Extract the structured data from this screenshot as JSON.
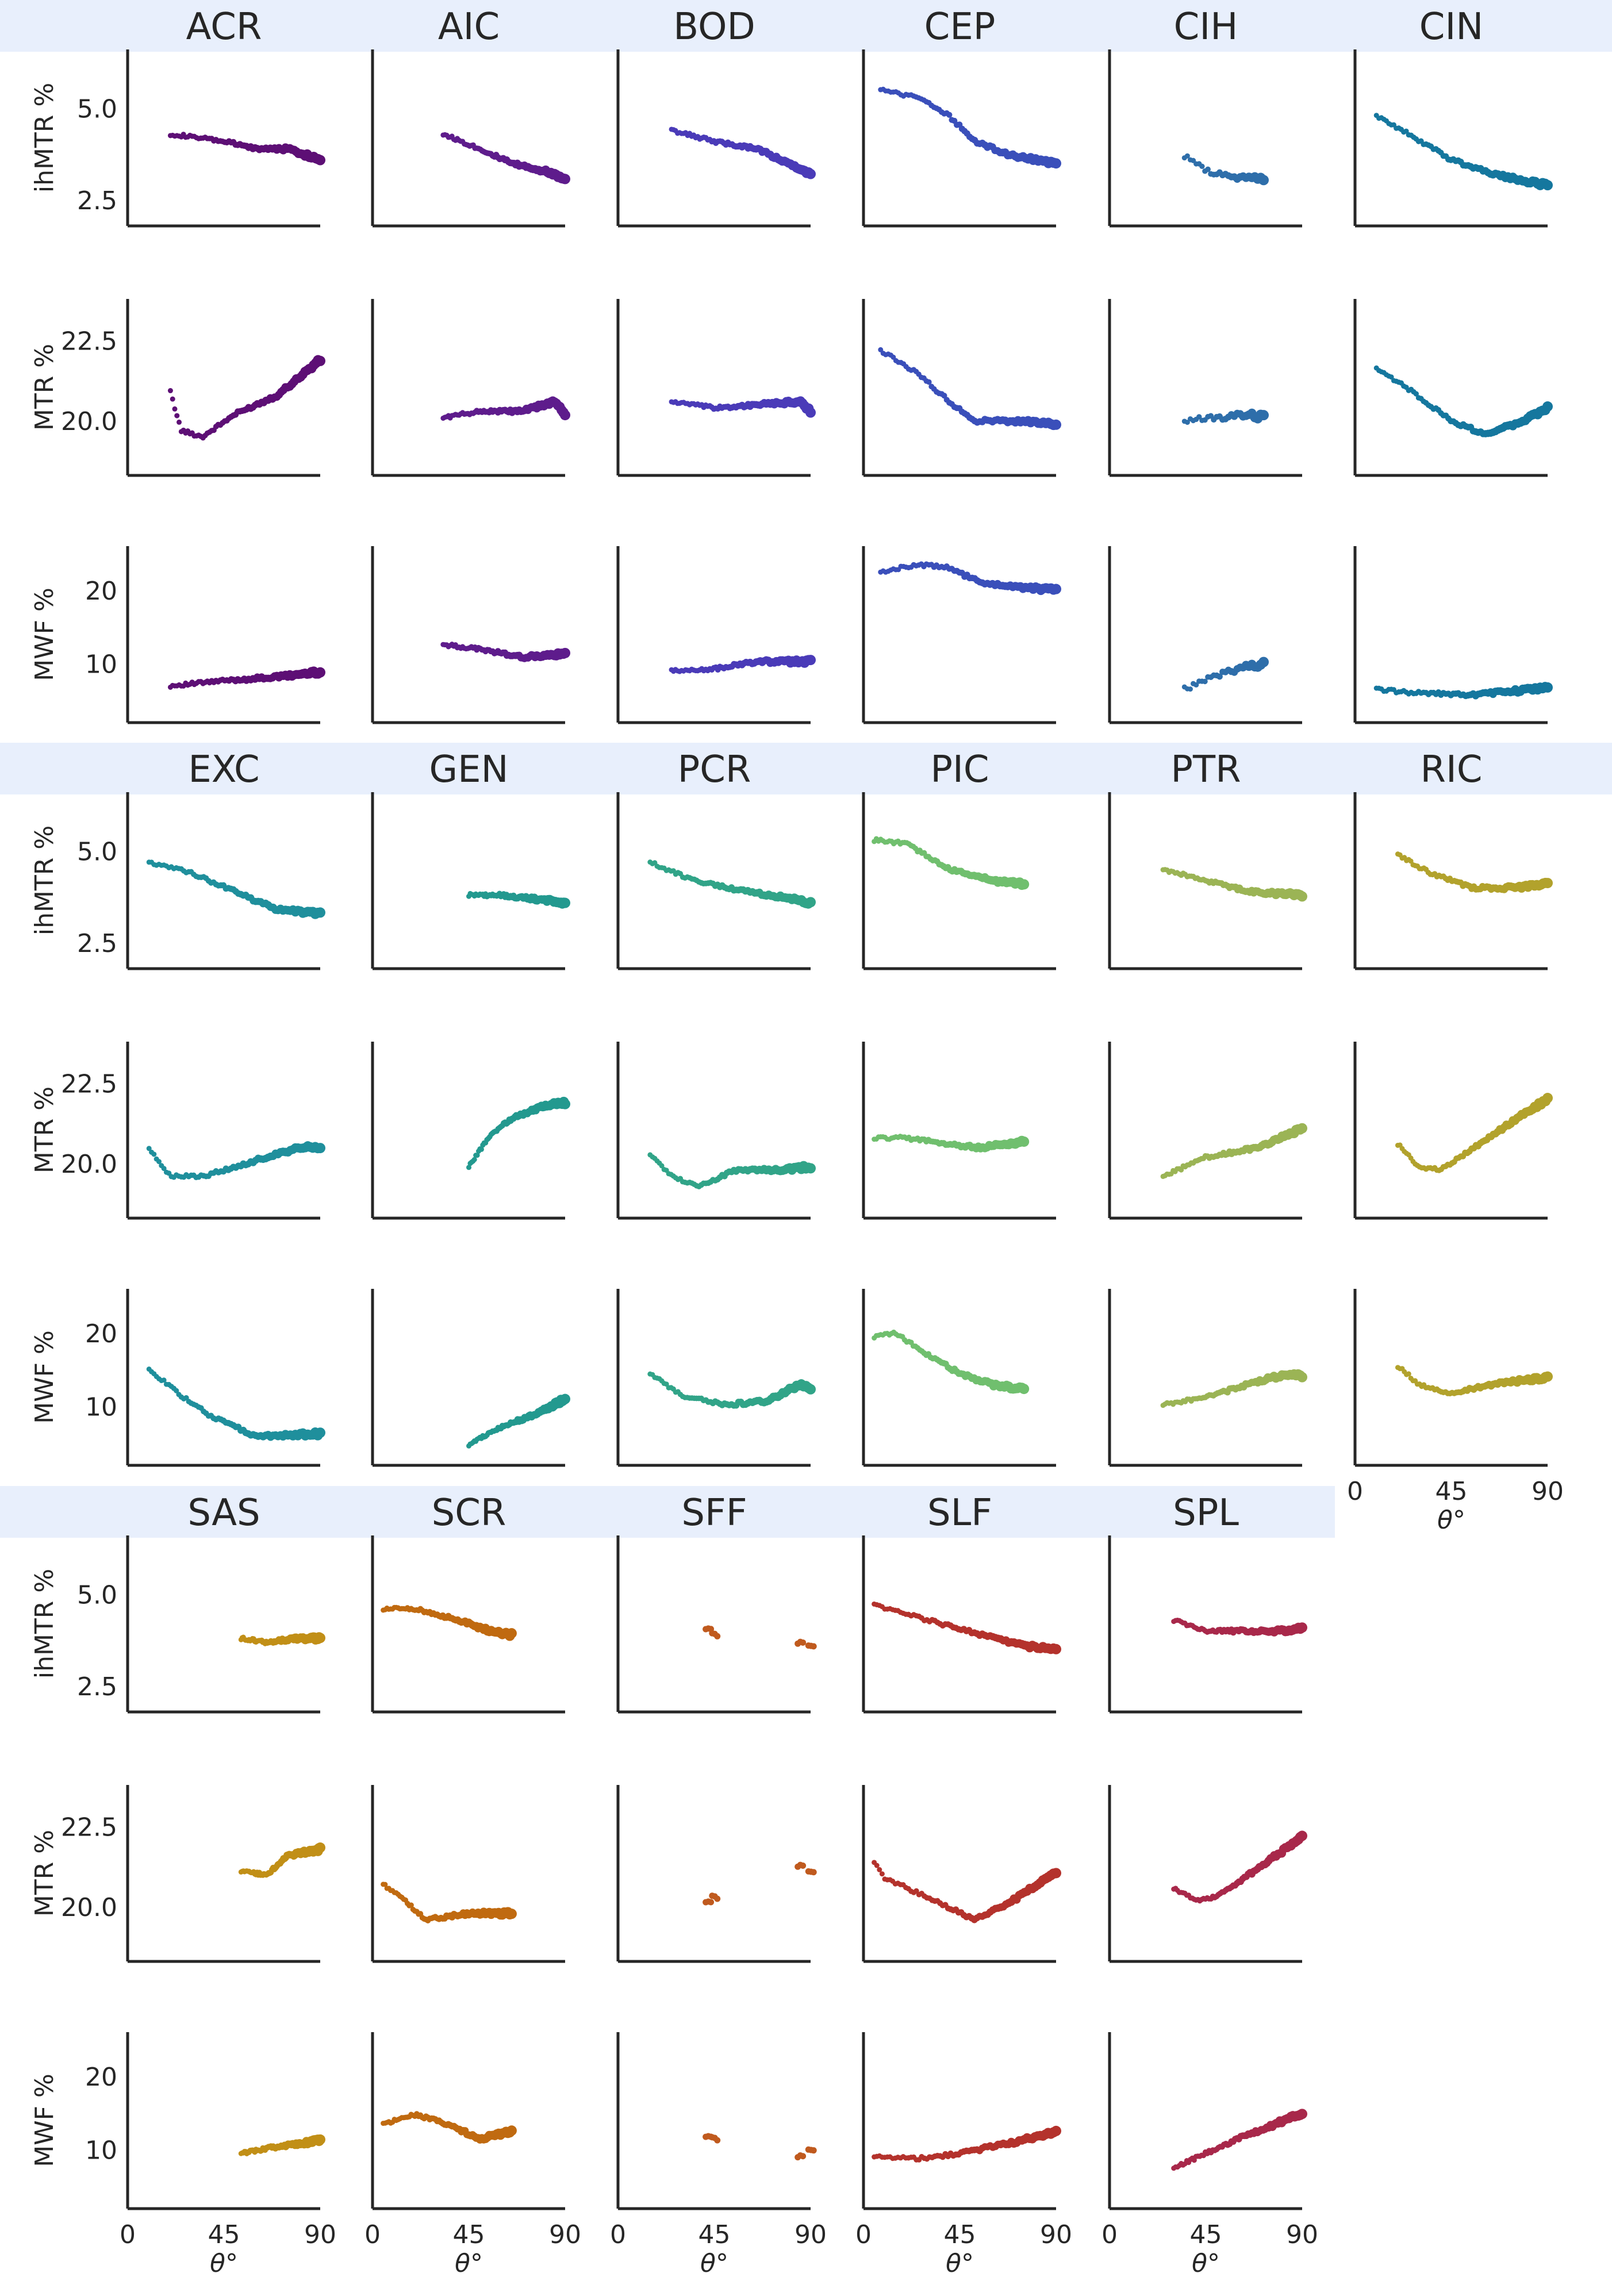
{
  "figure": {
    "band_color": "#e8effc",
    "y_axis_labels": {
      "ihMTR": "ihMTR %",
      "MTR": "MTR %",
      "MWF": "MWF %"
    },
    "x_axis_label": "θ°",
    "x_tick_labels": [
      "0",
      "45",
      "90"
    ],
    "y_tick_labels": {
      "ihMTR": [
        "2.5",
        "5.0"
      ],
      "MTR": [
        "20.0",
        "22.5"
      ],
      "MWF": [
        "10",
        "20"
      ]
    }
  },
  "chart_data": {
    "type": "scatter",
    "title": "",
    "xlabel": "θ°",
    "xlim": [
      0,
      90
    ],
    "xticks": [
      0,
      45,
      90
    ],
    "metrics": [
      {
        "key": "ihMTR",
        "ylabel": "ihMTR %",
        "ylim": [
          1.8,
          6.6
        ],
        "yticks": [
          2.5,
          5.0
        ]
      },
      {
        "key": "MTR",
        "ylabel": "MTR %",
        "ylim": [
          18.3,
          23.8
        ],
        "yticks": [
          20.0,
          22.5
        ]
      },
      {
        "key": "MWF",
        "ylabel": "MWF %",
        "ylim": [
          2,
          26
        ],
        "yticks": [
          10,
          20
        ]
      }
    ],
    "bundles": [
      {
        "name": "ACR",
        "color": "#5d0f75",
        "ihMTR": [
          [
            20,
            4.3
          ],
          [
            45,
            4.1
          ],
          [
            60,
            3.9
          ],
          [
            75,
            3.9
          ],
          [
            90,
            3.6
          ]
        ],
        "MTR": [
          [
            20,
            20.9
          ],
          [
            25,
            19.7
          ],
          [
            35,
            19.5
          ],
          [
            50,
            20.2
          ],
          [
            70,
            20.8
          ],
          [
            90,
            21.9
          ]
        ],
        "MWF": [
          [
            20,
            7.0
          ],
          [
            45,
            7.7
          ],
          [
            70,
            8.2
          ],
          [
            90,
            8.9
          ]
        ]
      },
      {
        "name": "AIC",
        "color": "#5e1c8c",
        "ihMTR": [
          [
            33,
            4.3
          ],
          [
            50,
            3.9
          ],
          [
            65,
            3.5
          ],
          [
            80,
            3.3
          ],
          [
            90,
            3.1
          ]
        ],
        "MTR": [
          [
            33,
            20.1
          ],
          [
            50,
            20.3
          ],
          [
            70,
            20.3
          ],
          [
            85,
            20.6
          ],
          [
            90,
            20.2
          ]
        ],
        "MWF": [
          [
            33,
            12.6
          ],
          [
            50,
            12.0
          ],
          [
            70,
            10.9
          ],
          [
            90,
            11.3
          ]
        ]
      },
      {
        "name": "BOD",
        "color": "#4a3bb8",
        "ihMTR": [
          [
            25,
            4.4
          ],
          [
            45,
            4.1
          ],
          [
            65,
            3.9
          ],
          [
            90,
            3.2
          ]
        ],
        "MTR": [
          [
            25,
            20.6
          ],
          [
            45,
            20.4
          ],
          [
            65,
            20.5
          ],
          [
            85,
            20.6
          ],
          [
            90,
            20.3
          ]
        ],
        "MWF": [
          [
            25,
            9.0
          ],
          [
            45,
            9.3
          ],
          [
            65,
            10.3
          ],
          [
            90,
            10.3
          ]
        ]
      },
      {
        "name": "CEP",
        "color": "#3a4fba",
        "ihMTR": [
          [
            8,
            5.5
          ],
          [
            25,
            5.3
          ],
          [
            40,
            4.8
          ],
          [
            52,
            4.1
          ],
          [
            70,
            3.7
          ],
          [
            90,
            3.5
          ]
        ],
        "MTR": [
          [
            8,
            22.2
          ],
          [
            25,
            21.5
          ],
          [
            40,
            20.6
          ],
          [
            52,
            20.0
          ],
          [
            70,
            20.0
          ],
          [
            90,
            19.9
          ]
        ],
        "MWF": [
          [
            8,
            22.5
          ],
          [
            25,
            23.5
          ],
          [
            40,
            23.0
          ],
          [
            55,
            21.0
          ],
          [
            70,
            20.5
          ],
          [
            90,
            20.0
          ]
        ]
      },
      {
        "name": "CIH",
        "color": "#2e6eaa",
        "ihMTR": [
          [
            35,
            3.7
          ],
          [
            45,
            3.3
          ],
          [
            60,
            3.1
          ],
          [
            72,
            3.1
          ]
        ],
        "MTR": [
          [
            35,
            20.0
          ],
          [
            50,
            20.1
          ],
          [
            65,
            20.2
          ],
          [
            72,
            20.1
          ]
        ],
        "MWF": [
          [
            35,
            6.5
          ],
          [
            45,
            8.0
          ],
          [
            60,
            9.3
          ],
          [
            72,
            10.1
          ]
        ]
      },
      {
        "name": "CIN",
        "color": "#15779e",
        "ihMTR": [
          [
            10,
            4.8
          ],
          [
            25,
            4.3
          ],
          [
            45,
            3.6
          ],
          [
            65,
            3.2
          ],
          [
            90,
            2.9
          ]
        ],
        "MTR": [
          [
            10,
            21.6
          ],
          [
            25,
            21.0
          ],
          [
            45,
            20.0
          ],
          [
            60,
            19.6
          ],
          [
            75,
            19.9
          ],
          [
            90,
            20.4
          ]
        ],
        "MWF": [
          [
            10,
            6.5
          ],
          [
            30,
            6.0
          ],
          [
            55,
            5.8
          ],
          [
            75,
            6.3
          ],
          [
            90,
            6.8
          ]
        ]
      },
      {
        "name": "EXC",
        "color": "#1f8f9c",
        "ihMTR": [
          [
            10,
            4.7
          ],
          [
            30,
            4.4
          ],
          [
            50,
            3.9
          ],
          [
            70,
            3.4
          ],
          [
            90,
            3.3
          ]
        ],
        "MTR": [
          [
            10,
            20.5
          ],
          [
            20,
            19.6
          ],
          [
            35,
            19.6
          ],
          [
            55,
            20.0
          ],
          [
            80,
            20.5
          ],
          [
            90,
            20.5
          ]
        ],
        "MWF": [
          [
            10,
            15.0
          ],
          [
            25,
            11.5
          ],
          [
            40,
            8.5
          ],
          [
            60,
            6.0
          ],
          [
            80,
            6.2
          ],
          [
            90,
            6.3
          ]
        ]
      },
      {
        "name": "GEN",
        "color": "#23998f",
        "ihMTR": [
          [
            45,
            3.8
          ],
          [
            60,
            3.8
          ],
          [
            75,
            3.7
          ],
          [
            90,
            3.6
          ]
        ],
        "MTR": [
          [
            45,
            19.9
          ],
          [
            55,
            20.9
          ],
          [
            65,
            21.4
          ],
          [
            80,
            21.8
          ],
          [
            90,
            21.9
          ]
        ],
        "MWF": [
          [
            45,
            4.8
          ],
          [
            60,
            7.2
          ],
          [
            75,
            8.8
          ],
          [
            90,
            11.0
          ]
        ]
      },
      {
        "name": "PCR",
        "color": "#31a488",
        "ihMTR": [
          [
            15,
            4.7
          ],
          [
            35,
            4.2
          ],
          [
            60,
            3.9
          ],
          [
            90,
            3.6
          ]
        ],
        "MTR": [
          [
            15,
            20.3
          ],
          [
            25,
            19.6
          ],
          [
            38,
            19.3
          ],
          [
            55,
            19.8
          ],
          [
            75,
            19.8
          ],
          [
            90,
            19.9
          ]
        ],
        "MWF": [
          [
            15,
            14.5
          ],
          [
            30,
            11.5
          ],
          [
            50,
            10.2
          ],
          [
            70,
            10.8
          ],
          [
            85,
            13.0
          ],
          [
            90,
            12.5
          ]
        ]
      },
      {
        "name": "PIC",
        "color": "#70bf6e",
        "ihMTR": [
          [
            5,
            5.3
          ],
          [
            20,
            5.2
          ],
          [
            40,
            4.5
          ],
          [
            60,
            4.2
          ],
          [
            75,
            4.1
          ]
        ],
        "MTR": [
          [
            5,
            20.8
          ],
          [
            20,
            20.8
          ],
          [
            40,
            20.6
          ],
          [
            55,
            20.5
          ],
          [
            75,
            20.7
          ]
        ],
        "MWF": [
          [
            5,
            19.5
          ],
          [
            15,
            20.0
          ],
          [
            30,
            17.0
          ],
          [
            45,
            14.5
          ],
          [
            60,
            13.0
          ],
          [
            75,
            12.3
          ]
        ]
      },
      {
        "name": "PTR",
        "color": "#9bb455",
        "ihMTR": [
          [
            25,
            4.5
          ],
          [
            45,
            4.2
          ],
          [
            65,
            3.9
          ],
          [
            90,
            3.8
          ]
        ],
        "MTR": [
          [
            25,
            19.6
          ],
          [
            45,
            20.2
          ],
          [
            70,
            20.5
          ],
          [
            90,
            21.1
          ]
        ],
        "MWF": [
          [
            25,
            10.3
          ],
          [
            45,
            11.2
          ],
          [
            70,
            13.5
          ],
          [
            85,
            14.5
          ],
          [
            90,
            14.2
          ]
        ]
      },
      {
        "name": "RIC",
        "color": "#b2a22c",
        "ihMTR": [
          [
            20,
            4.9
          ],
          [
            35,
            4.4
          ],
          [
            55,
            4.0
          ],
          [
            75,
            4.0
          ],
          [
            90,
            4.1
          ]
        ],
        "MTR": [
          [
            20,
            20.6
          ],
          [
            30,
            19.9
          ],
          [
            40,
            19.8
          ],
          [
            60,
            20.7
          ],
          [
            80,
            21.6
          ],
          [
            90,
            22.0
          ]
        ],
        "MWF": [
          [
            20,
            15.5
          ],
          [
            30,
            13.0
          ],
          [
            45,
            11.8
          ],
          [
            65,
            13.0
          ],
          [
            90,
            14.0
          ]
        ]
      },
      {
        "name": "SAS",
        "color": "#c18f17",
        "ihMTR": [
          [
            53,
            3.8
          ],
          [
            65,
            3.7
          ],
          [
            80,
            3.8
          ],
          [
            90,
            3.8
          ]
        ],
        "MTR": [
          [
            53,
            21.1
          ],
          [
            65,
            21.0
          ],
          [
            75,
            21.6
          ],
          [
            90,
            21.8
          ]
        ],
        "MWF": [
          [
            53,
            9.5
          ],
          [
            65,
            10.2
          ],
          [
            80,
            10.8
          ],
          [
            90,
            11.3
          ]
        ]
      },
      {
        "name": "SCR",
        "color": "#c06a10",
        "ihMTR": [
          [
            5,
            4.6
          ],
          [
            20,
            4.6
          ],
          [
            40,
            4.3
          ],
          [
            55,
            4.0
          ],
          [
            65,
            3.9
          ]
        ],
        "MTR": [
          [
            5,
            20.7
          ],
          [
            15,
            20.2
          ],
          [
            25,
            19.6
          ],
          [
            45,
            19.8
          ],
          [
            65,
            19.8
          ]
        ],
        "MWF": [
          [
            5,
            13.5
          ],
          [
            20,
            14.8
          ],
          [
            35,
            13.5
          ],
          [
            50,
            11.5
          ],
          [
            65,
            12.5
          ]
        ]
      },
      {
        "name": "SFF",
        "color": "#c05a1e",
        "ihMTR": [
          [
            42,
            4.1
          ],
          [
            45,
            3.9
          ],
          [
            85,
            3.7
          ],
          [
            90,
            3.6
          ]
        ],
        "MTR": [
          [
            42,
            20.2
          ],
          [
            45,
            20.3
          ],
          [
            85,
            21.3
          ],
          [
            90,
            21.1
          ]
        ],
        "MWF": [
          [
            42,
            12.0
          ],
          [
            45,
            11.5
          ],
          [
            85,
            9.2
          ],
          [
            90,
            10.0
          ]
        ]
      },
      {
        "name": "SLF",
        "color": "#b4322c",
        "ihMTR": [
          [
            5,
            4.7
          ],
          [
            30,
            4.3
          ],
          [
            55,
            3.9
          ],
          [
            75,
            3.6
          ],
          [
            90,
            3.5
          ]
        ],
        "MTR": [
          [
            5,
            21.4
          ],
          [
            10,
            20.9
          ],
          [
            30,
            20.3
          ],
          [
            52,
            19.6
          ],
          [
            70,
            20.2
          ],
          [
            90,
            21.1
          ]
        ],
        "MWF": [
          [
            5,
            9.0
          ],
          [
            25,
            8.8
          ],
          [
            45,
            9.5
          ],
          [
            70,
            11.0
          ],
          [
            90,
            12.5
          ]
        ]
      },
      {
        "name": "SPL",
        "color": "#a8284a",
        "ihMTR": [
          [
            30,
            4.3
          ],
          [
            45,
            4.0
          ],
          [
            65,
            4.0
          ],
          [
            80,
            4.0
          ],
          [
            90,
            4.1
          ]
        ],
        "MTR": [
          [
            30,
            20.6
          ],
          [
            40,
            20.2
          ],
          [
            50,
            20.3
          ],
          [
            65,
            21.0
          ],
          [
            80,
            21.7
          ],
          [
            90,
            22.2
          ]
        ],
        "MWF": [
          [
            30,
            7.5
          ],
          [
            45,
            9.5
          ],
          [
            60,
            11.5
          ],
          [
            75,
            13.2
          ],
          [
            90,
            15.0
          ]
        ]
      }
    ]
  }
}
